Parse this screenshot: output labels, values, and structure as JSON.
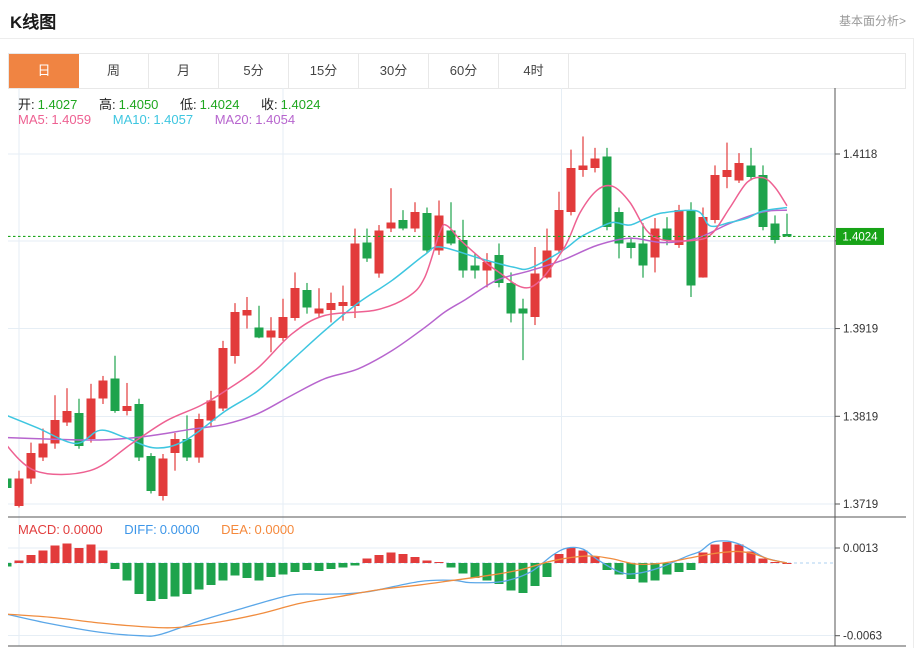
{
  "header": {
    "title": "K线图",
    "link": "基本面分析>"
  },
  "tabs": {
    "items": [
      "日",
      "周",
      "月",
      "5分",
      "15分",
      "30分",
      "60分",
      "4时"
    ],
    "active_index": 0
  },
  "indicators": {
    "open_label": "开:",
    "open_value": "1.4027",
    "high_label": "高:",
    "high_value": "1.4050",
    "low_label": "低:",
    "low_value": "1.4024",
    "close_label": "收:",
    "close_value": "1.4024",
    "ma5_label": "MA5:",
    "ma5_value": "1.4059",
    "ma10_label": "MA10:",
    "ma10_value": "1.4057",
    "ma20_label": "MA20:",
    "ma20_value": "1.4054",
    "macd_label": "MACD:",
    "macd_value": "0.0000",
    "diff_label": "DIFF:",
    "diff_value": "0.0000",
    "dea_label": "DEA:",
    "dea_value": "0.0000"
  },
  "colors": {
    "up": "#e23b3b",
    "down": "#1ea34c",
    "ma5": "#ee6192",
    "ma10": "#3ec6e0",
    "ma20": "#b765ce",
    "diff": "#5ba7e8",
    "dea": "#f08c3e",
    "price_line": "#1fa71f",
    "badge_bg": "#17a317",
    "badge_text": "#ffffff",
    "grid": "#e6eef5",
    "axis_line": "#555555",
    "axis_text": "#333333",
    "macd_zero": "#aed2f0",
    "tab_active": "#f08442"
  },
  "chart_data": {
    "type": "candlestick+macd",
    "title": "K线图 daily candlestick with MA5/MA10/MA20 and MACD",
    "legend": [
      "MA5",
      "MA10",
      "MA20",
      "MACD",
      "DIFF",
      "DEA"
    ],
    "price_axis": {
      "gridline_prices": [
        1.4118,
        1.4019,
        1.3919,
        1.3819,
        1.3719
      ],
      "gridline_labels": [
        "1.4118",
        "",
        "1.3919",
        "1.3819",
        "1.3719"
      ],
      "current_price": 1.4024,
      "current_price_label": "1.4024"
    },
    "macd_axis": {
      "gridline_values": [
        0.0013,
        -0.0063
      ],
      "gridline_labels": [
        "0.0013",
        "-0.0063"
      ],
      "zero_value": 0
    },
    "candles_ohlc_order": [
      "open",
      "high",
      "low",
      "close"
    ],
    "candles": [
      [
        1.3748,
        1.375,
        1.3732,
        1.3737
      ],
      [
        1.3717,
        1.3757,
        1.3715,
        1.3748
      ],
      [
        1.3748,
        1.3789,
        1.3742,
        1.3777
      ],
      [
        1.3772,
        1.3805,
        1.3768,
        1.3788
      ],
      [
        1.3788,
        1.3843,
        1.3782,
        1.3815
      ],
      [
        1.3812,
        1.3851,
        1.3808,
        1.3825
      ],
      [
        1.3823,
        1.3839,
        1.3782,
        1.3785
      ],
      [
        1.3793,
        1.3856,
        1.3789,
        1.3839
      ],
      [
        1.3839,
        1.3865,
        1.3833,
        1.386
      ],
      [
        1.3862,
        1.3888,
        1.3823,
        1.3825
      ],
      [
        1.3825,
        1.3857,
        1.382,
        1.3831
      ],
      [
        1.3833,
        1.3839,
        1.3768,
        1.3772
      ],
      [
        1.3774,
        1.3777,
        1.3731,
        1.3734
      ],
      [
        1.3728,
        1.3776,
        1.3723,
        1.3771
      ],
      [
        1.3777,
        1.38,
        1.3757,
        1.3793
      ],
      [
        1.3793,
        1.382,
        1.3768,
        1.3772
      ],
      [
        1.3772,
        1.3822,
        1.3766,
        1.3816
      ],
      [
        1.3814,
        1.3848,
        1.3808,
        1.3837
      ],
      [
        1.3828,
        1.3905,
        1.3825,
        1.3897
      ],
      [
        1.3888,
        1.3948,
        1.3879,
        1.3938
      ],
      [
        1.3934,
        1.3955,
        1.3919,
        1.394
      ],
      [
        1.392,
        1.3945,
        1.3908,
        1.3909
      ],
      [
        1.3909,
        1.3932,
        1.3892,
        1.3917
      ],
      [
        1.3908,
        1.3953,
        1.3905,
        1.3932
      ],
      [
        1.3931,
        1.3983,
        1.3928,
        1.3965
      ],
      [
        1.3963,
        1.3971,
        1.3936,
        1.3943
      ],
      [
        1.3936,
        1.3965,
        1.3932,
        1.3942
      ],
      [
        1.394,
        1.396,
        1.3926,
        1.3948
      ],
      [
        1.3945,
        1.3968,
        1.3928,
        1.3949
      ],
      [
        1.3945,
        1.4033,
        1.3931,
        1.4016
      ],
      [
        1.4017,
        1.4033,
        1.3995,
        1.3999
      ],
      [
        1.3982,
        1.4037,
        1.3977,
        1.4031
      ],
      [
        1.4033,
        1.4079,
        1.4029,
        1.404
      ],
      [
        1.4043,
        1.4054,
        1.4031,
        1.4033
      ],
      [
        1.4033,
        1.4063,
        1.4029,
        1.4052
      ],
      [
        1.4051,
        1.4057,
        1.4005,
        1.4008
      ],
      [
        1.4008,
        1.4065,
        1.4003,
        1.4048
      ],
      [
        1.4031,
        1.4063,
        1.4014,
        1.4016
      ],
      [
        1.402,
        1.4043,
        1.3977,
        1.3985
      ],
      [
        1.3991,
        1.4005,
        1.3976,
        1.3985
      ],
      [
        1.3985,
        1.4005,
        1.3966,
        1.3995
      ],
      [
        1.4003,
        1.4016,
        1.3966,
        1.3971
      ],
      [
        1.3971,
        1.3983,
        1.3926,
        1.3936
      ],
      [
        1.3942,
        1.3953,
        1.3883,
        1.3936
      ],
      [
        1.3932,
        1.4012,
        1.3923,
        1.3982
      ],
      [
        1.3977,
        1.4033,
        1.3976,
        1.4008
      ],
      [
        1.4008,
        1.4075,
        1.4005,
        1.4054
      ],
      [
        1.4052,
        1.4123,
        1.4048,
        1.4102
      ],
      [
        1.41,
        1.4138,
        1.4092,
        1.4105
      ],
      [
        1.4102,
        1.4125,
        1.4097,
        1.4113
      ],
      [
        1.4115,
        1.4125,
        1.4031,
        1.4035
      ],
      [
        1.4052,
        1.4057,
        1.3999,
        1.4016
      ],
      [
        1.4017,
        1.4023,
        1.3999,
        1.4011
      ],
      [
        1.4016,
        1.4039,
        1.3977,
        1.3991
      ],
      [
        1.4,
        1.4045,
        1.3983,
        1.4033
      ],
      [
        1.4033,
        1.4046,
        1.4014,
        1.402
      ],
      [
        1.4014,
        1.406,
        1.4011,
        1.4054
      ],
      [
        1.4054,
        1.4063,
        1.3955,
        1.3968
      ],
      [
        1.3977,
        1.4057,
        1.3977,
        1.4046
      ],
      [
        1.4043,
        1.4105,
        1.4039,
        1.4094
      ],
      [
        1.4092,
        1.4131,
        1.4079,
        1.41
      ],
      [
        1.4088,
        1.4119,
        1.4085,
        1.4108
      ],
      [
        1.4105,
        1.4125,
        1.4088,
        1.4092
      ],
      [
        1.4094,
        1.4105,
        1.4031,
        1.4035
      ],
      [
        1.4039,
        1.4048,
        1.4016,
        1.402
      ],
      [
        1.4027,
        1.405,
        1.4024,
        1.4024
      ]
    ],
    "ma5": [
      [
        -0.58,
        1.3795
      ],
      [
        2.33,
        1.3757
      ],
      [
        6.9,
        1.3757
      ],
      [
        10.5,
        1.3789
      ],
      [
        13.3,
        1.3814
      ],
      [
        16.1,
        1.3831
      ],
      [
        18.2,
        1.3848
      ],
      [
        20.9,
        1.3874
      ],
      [
        23.75,
        1.3913
      ],
      [
        26.5,
        1.3934
      ],
      [
        30.7,
        1.394
      ],
      [
        33.4,
        1.3955
      ],
      [
        34.8,
        1.3977
      ],
      [
        36.1,
        1.403
      ],
      [
        36.7,
        1.4036
      ],
      [
        38,
        1.4017
      ],
      [
        40.8,
        1.3985
      ],
      [
        43.6,
        1.3966
      ],
      [
        46.3,
        1.4008
      ],
      [
        47.75,
        1.4051
      ],
      [
        49.2,
        1.4077
      ],
      [
        50.5,
        1.4081
      ],
      [
        51.9,
        1.4063
      ],
      [
        53.3,
        1.4031
      ],
      [
        54.7,
        1.402
      ],
      [
        57.5,
        1.402
      ],
      [
        58.8,
        1.4028
      ],
      [
        60.25,
        1.4057
      ],
      [
        61.7,
        1.4086
      ],
      [
        63,
        1.4091
      ],
      [
        64,
        1.408
      ],
      [
        65,
        1.4059
      ]
    ],
    "ma10": [
      [
        -0.58,
        1.3823
      ],
      [
        2.5,
        1.3806
      ],
      [
        5.7,
        1.3788
      ],
      [
        7.75,
        1.3803
      ],
      [
        9.8,
        1.3795
      ],
      [
        12.3,
        1.3783
      ],
      [
        14.8,
        1.3791
      ],
      [
        18.2,
        1.3825
      ],
      [
        20.9,
        1.3848
      ],
      [
        23.75,
        1.3883
      ],
      [
        26.5,
        1.3917
      ],
      [
        29.25,
        1.3948
      ],
      [
        32.1,
        1.3974
      ],
      [
        34.8,
        1.4003
      ],
      [
        36.1,
        1.4012
      ],
      [
        39.4,
        1.3999
      ],
      [
        42.2,
        1.3989
      ],
      [
        43.6,
        1.3988
      ],
      [
        46.3,
        1.4008
      ],
      [
        47.75,
        1.4023
      ],
      [
        49.2,
        1.4033
      ],
      [
        50.5,
        1.404
      ],
      [
        51.9,
        1.4037
      ],
      [
        53.3,
        1.4045
      ],
      [
        54.7,
        1.4051
      ],
      [
        57.5,
        1.4053
      ],
      [
        58.6,
        1.4036
      ],
      [
        60.25,
        1.404
      ],
      [
        61.7,
        1.4045
      ],
      [
        63,
        1.4053
      ],
      [
        65,
        1.4057
      ]
    ],
    "ma20": [
      [
        -0.58,
        1.3795
      ],
      [
        3.6,
        1.3793
      ],
      [
        7.75,
        1.3792
      ],
      [
        11.5,
        1.3796
      ],
      [
        15.25,
        1.3804
      ],
      [
        18.2,
        1.381
      ],
      [
        20.9,
        1.3822
      ],
      [
        23.75,
        1.3843
      ],
      [
        26.5,
        1.3862
      ],
      [
        29.25,
        1.3873
      ],
      [
        32.1,
        1.3894
      ],
      [
        34.8,
        1.392
      ],
      [
        36.5,
        1.3938
      ],
      [
        38.2,
        1.3952
      ],
      [
        40.8,
        1.3974
      ],
      [
        43.6,
        1.3985
      ],
      [
        46.3,
        1.3997
      ],
      [
        49.2,
        1.4014
      ],
      [
        51.9,
        1.4022
      ],
      [
        54.7,
        1.4017
      ],
      [
        57.5,
        1.4022
      ],
      [
        60.25,
        1.4039
      ],
      [
        63,
        1.4052
      ],
      [
        65,
        1.4054
      ]
    ],
    "macd_histogram": [
      -0.0003,
      0.0002,
      0.0007,
      0.0011,
      0.0015,
      0.0017,
      0.0013,
      0.0016,
      0.0011,
      -0.0005,
      -0.0015,
      -0.0027,
      -0.0033,
      -0.0031,
      -0.0029,
      -0.0027,
      -0.0023,
      -0.0019,
      -0.0015,
      -0.0011,
      -0.0013,
      -0.0015,
      -0.0012,
      -0.001,
      -0.0008,
      -0.0006,
      -0.0007,
      -0.0005,
      -0.0004,
      -0.0002,
      0.0004,
      0.0007,
      0.0009,
      0.0008,
      0.0005,
      0.0002,
      0.0001,
      -0.0004,
      -0.0009,
      -0.0013,
      -0.0015,
      -0.0018,
      -0.0024,
      -0.0026,
      -0.002,
      -0.0012,
      0.0008,
      0.0013,
      0.0011,
      0.0006,
      -0.0006,
      -0.001,
      -0.0014,
      -0.0017,
      -0.0015,
      -0.001,
      -0.0008,
      -0.0006,
      0.0009,
      0.0016,
      0.0018,
      0.0016,
      0.001,
      0.0004,
      0.0001,
      0.0
    ],
    "diff": [
      [
        -0.58,
        -0.0043
      ],
      [
        3.3,
        -0.0052
      ],
      [
        7.75,
        -0.006
      ],
      [
        11.1,
        -0.0063
      ],
      [
        12.75,
        -0.0062
      ],
      [
        16.1,
        -0.005
      ],
      [
        19.4,
        -0.004
      ],
      [
        22.75,
        -0.003
      ],
      [
        24.4,
        -0.0027
      ],
      [
        26.9,
        -0.0027
      ],
      [
        30,
        -0.0025
      ],
      [
        34.4,
        -0.0016
      ],
      [
        37.2,
        -0.0015
      ],
      [
        38.6,
        -0.0017
      ],
      [
        41.3,
        -0.0016
      ],
      [
        43.6,
        -0.0008
      ],
      [
        45.5,
        0.0007
      ],
      [
        46.7,
        0.0013
      ],
      [
        48,
        0.0012
      ],
      [
        49.2,
        0.0003
      ],
      [
        51.1,
        -0.0008
      ],
      [
        52.5,
        -0.0009
      ],
      [
        54.4,
        -0.0004
      ],
      [
        56.7,
        0.0006
      ],
      [
        57.75,
        0.001
      ],
      [
        58.8,
        0.0018
      ],
      [
        60,
        0.0019
      ],
      [
        61.1,
        0.0016
      ],
      [
        62.2,
        0.001
      ],
      [
        63.3,
        0.0004
      ],
      [
        65,
        0.0
      ]
    ],
    "dea": [
      [
        -0.58,
        -0.0044
      ],
      [
        3.6,
        -0.0047
      ],
      [
        7.75,
        -0.0052
      ],
      [
        11.1,
        -0.0055
      ],
      [
        14,
        -0.0056
      ],
      [
        17.75,
        -0.0051
      ],
      [
        21.1,
        -0.0044
      ],
      [
        24.4,
        -0.0035
      ],
      [
        27.75,
        -0.0029
      ],
      [
        31.1,
        -0.0023
      ],
      [
        34.4,
        -0.0019
      ],
      [
        37.2,
        -0.0015
      ],
      [
        40,
        -0.0011
      ],
      [
        42.75,
        -0.0006
      ],
      [
        45.5,
        0.0002
      ],
      [
        48.3,
        0.0006
      ],
      [
        50.25,
        0.0004
      ],
      [
        52.5,
        -0.0001
      ],
      [
        54.7,
        0.0
      ],
      [
        56.7,
        0.0004
      ],
      [
        58.8,
        0.0008
      ],
      [
        60.8,
        0.001
      ],
      [
        62.2,
        0.0008
      ],
      [
        63.6,
        0.0003
      ],
      [
        65,
        0.0
      ]
    ],
    "x_gridlines_candle_index": [
      1.0,
      23.0,
      46.2
    ],
    "layout_hints": {
      "grid": true,
      "panels": 2,
      "axis_position": "right"
    }
  }
}
